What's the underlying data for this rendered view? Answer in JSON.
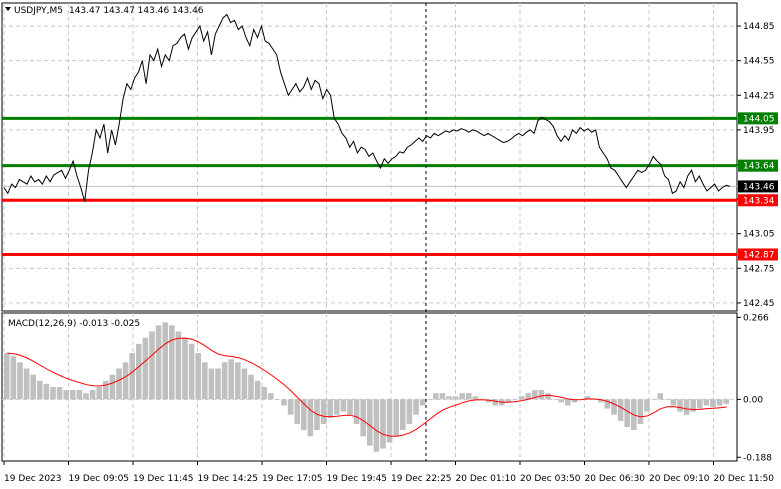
{
  "chart_data": [
    {
      "type": "line",
      "title": "USDJPY,M5",
      "ohlc": "143.47 143.47 143.46 143.46",
      "ylim": [
        142.38,
        145.05
      ],
      "ticks": [
        144.85,
        144.55,
        144.25,
        143.95,
        143.65,
        143.35,
        143.05,
        142.75,
        142.45
      ],
      "x_labels": [
        "19 Dec 2023",
        "19 Dec 09:05",
        "19 Dec 11:45",
        "19 Dec 14:25",
        "19 Dec 17:05",
        "19 Dec 19:45",
        "19 Dec 22:25",
        "20 Dec 01:10",
        "20 Dec 03:50",
        "20 Dec 06:30",
        "20 Dec 09:10",
        "20 Dec 11:50"
      ],
      "current_price": {
        "value": 143.46,
        "label": "143.46",
        "color": "#000000"
      },
      "levels": [
        {
          "value": 144.05,
          "label": "144.05",
          "color": "#008000"
        },
        {
          "value": 143.64,
          "label": "143.64",
          "color": "#008000"
        },
        {
          "value": 143.34,
          "label": "143.34",
          "color": "#ff0000"
        },
        {
          "value": 142.87,
          "label": "142.87",
          "color": "#ff0000"
        }
      ],
      "series": [
        {
          "color": "#000000",
          "values": [
            143.45,
            143.4,
            143.48,
            143.45,
            143.52,
            143.5,
            143.48,
            143.55,
            143.5,
            143.52,
            143.48,
            143.55,
            143.5,
            143.56,
            143.58,
            143.6,
            143.53,
            143.6,
            143.68,
            143.55,
            143.45,
            143.33,
            143.6,
            143.75,
            143.95,
            143.88,
            144,
            143.75,
            143.95,
            143.82,
            144,
            144.22,
            144.35,
            144.3,
            144.4,
            144.45,
            144.55,
            144.35,
            144.6,
            144.55,
            144.65,
            144.5,
            144.6,
            144.55,
            144.68,
            144.7,
            144.75,
            144.78,
            144.65,
            144.75,
            144.8,
            144.85,
            144.72,
            144.8,
            144.6,
            144.78,
            144.85,
            144.92,
            144.95,
            144.88,
            144.9,
            144.82,
            144.85,
            144.75,
            144.68,
            144.82,
            144.75,
            144.85,
            144.72,
            144.7,
            144.65,
            144.6,
            144.45,
            144.35,
            144.25,
            144.3,
            144.35,
            144.28,
            144.32,
            144.4,
            144.3,
            144.38,
            144.35,
            144.22,
            144.3,
            144.25,
            144.05,
            144.0,
            143.92,
            143.88,
            143.8,
            143.85,
            143.75,
            143.8,
            143.78,
            143.72,
            143.75,
            143.68,
            143.62,
            143.7,
            143.66,
            143.7,
            143.72,
            143.76,
            143.75,
            143.8,
            143.82,
            143.85,
            143.88,
            143.85,
            143.9,
            143.88,
            143.92,
            143.9,
            143.92,
            143.94,
            143.93,
            143.95,
            143.94,
            143.96,
            143.95,
            143.93,
            143.95,
            143.94,
            143.92,
            143.9,
            143.92,
            143.9,
            143.88,
            143.86,
            143.84,
            143.85,
            143.87,
            143.9,
            143.92,
            143.9,
            143.93,
            143.95,
            143.92,
            144.03,
            144.06,
            144.04,
            144.02,
            143.98,
            143.9,
            143.85,
            143.9,
            143.86,
            143.95,
            143.92,
            143.97,
            143.94,
            143.96,
            143.93,
            143.95,
            143.8,
            143.75,
            143.7,
            143.62,
            143.6,
            143.55,
            143.5,
            143.45,
            143.5,
            143.55,
            143.6,
            143.58,
            143.6,
            143.65,
            143.72,
            143.68,
            143.65,
            143.55,
            143.52,
            143.4,
            143.42,
            143.5,
            143.45,
            143.55,
            143.6,
            143.5,
            143.55,
            143.48,
            143.42,
            143.45,
            143.48,
            143.42,
            143.45,
            143.47,
            143.46
          ]
        },
        {
          "label": "MACD(12,26,9) -0.013 -0.025",
          "type": "histogram+signal",
          "ylim": [
            -0.2,
            0.28
          ],
          "ticks": [
            0.266,
            0.0,
            -0.188
          ],
          "histogram_color": "#c0c0c0",
          "signal_color": "#ff0000",
          "histogram": [
            0.15,
            0.14,
            0.12,
            0.1,
            0.08,
            0.06,
            0.05,
            0.04,
            0.04,
            0.03,
            0.03,
            0.03,
            0.02,
            0.03,
            0.04,
            0.06,
            0.08,
            0.1,
            0.12,
            0.15,
            0.18,
            0.2,
            0.22,
            0.24,
            0.25,
            0.24,
            0.22,
            0.2,
            0.18,
            0.15,
            0.12,
            0.1,
            0.1,
            0.12,
            0.13,
            0.12,
            0.1,
            0.08,
            0.06,
            0.04,
            0.02,
            0.0,
            -0.02,
            -0.05,
            -0.08,
            -0.1,
            -0.12,
            -0.1,
            -0.08,
            -0.06,
            -0.05,
            -0.04,
            -0.05,
            -0.08,
            -0.12,
            -0.15,
            -0.17,
            -0.16,
            -0.14,
            -0.12,
            -0.1,
            -0.08,
            -0.05,
            -0.02,
            0.0,
            0.02,
            0.02,
            0.01,
            0.01,
            0.02,
            0.02,
            0.01,
            0.0,
            -0.01,
            -0.02,
            -0.02,
            -0.01,
            0.0,
            0.01,
            0.02,
            0.03,
            0.03,
            0.02,
            0.0,
            -0.01,
            -0.02,
            -0.01,
            0.0,
            0.01,
            0.0,
            -0.01,
            -0.03,
            -0.05,
            -0.07,
            -0.09,
            -0.1,
            -0.08,
            -0.04,
            0.0,
            0.02,
            0.0,
            -0.02,
            -0.04,
            -0.05,
            -0.04,
            -0.03,
            -0.02,
            -0.025,
            -0.02,
            -0.015
          ]
        }
      ]
    }
  ]
}
